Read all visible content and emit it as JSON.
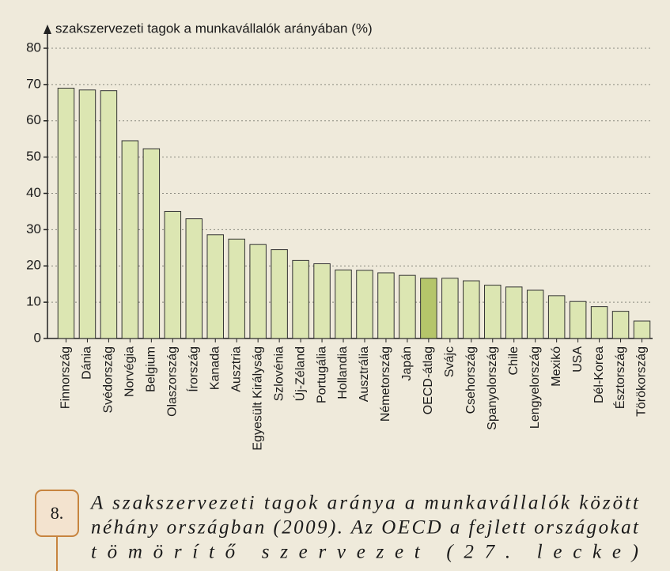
{
  "chart_data": {
    "type": "bar",
    "y_label": "szakszervezeti tagok a munkavállalók arányában (%)",
    "categories": [
      "Finnország",
      "Dánia",
      "Svédország",
      "Norvégia",
      "Belgium",
      "Olaszország",
      "Írország",
      "Kanada",
      "Ausztria",
      "Egyesült Királyság",
      "Szlovénia",
      "Új-Zéland",
      "Portugália",
      "Hollandia",
      "Ausztrália",
      "Németország",
      "Japán",
      "OECD-átlag",
      "Svájc",
      "Csehország",
      "Spanyolország",
      "Chile",
      "Lengyelország",
      "Mexikó",
      "USA",
      "Dél-Korea",
      "Észtország",
      "Törökország"
    ],
    "values": [
      69,
      68.5,
      68.3,
      54.5,
      52.3,
      35,
      33,
      28.6,
      27.4,
      25.9,
      24.5,
      21.5,
      20.6,
      18.9,
      18.8,
      18.1,
      17.4,
      16.6,
      16.6,
      15.9,
      14.7,
      14.2,
      13.3,
      11.8,
      10.2,
      8.8,
      7.5,
      4.8
    ],
    "colors": [
      "#dce6b2",
      "#dce6b2",
      "#dce6b2",
      "#dce6b2",
      "#dce6b2",
      "#dce6b2",
      "#dce6b2",
      "#dce6b2",
      "#dce6b2",
      "#dce6b2",
      "#dce6b2",
      "#dce6b2",
      "#dce6b2",
      "#dce6b2",
      "#dce6b2",
      "#dce6b2",
      "#dce6b2",
      "#b5c56a",
      "#dce6b2",
      "#dce6b2",
      "#dce6b2",
      "#dce6b2",
      "#dce6b2",
      "#dce6b2",
      "#dce6b2",
      "#dce6b2",
      "#dce6b2",
      "#dce6b2"
    ],
    "ylim": [
      0,
      80
    ],
    "yticks": [
      0,
      10,
      20,
      30,
      40,
      50,
      60,
      70,
      80
    ],
    "grid": true,
    "figure_label": "8.",
    "caption_lines": [
      "A szakszervezeti tagok aránya a munkavállalók között",
      "néhány országban (2009). Az OECD a fejlett országokat",
      "tömörítő szervezet (27. lecke)"
    ]
  }
}
